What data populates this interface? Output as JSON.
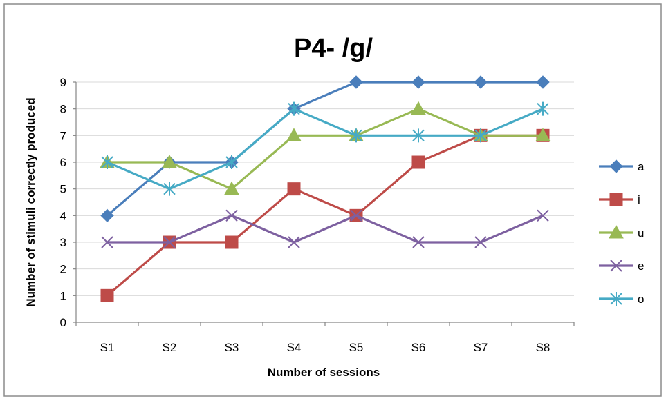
{
  "chart_data": {
    "type": "line",
    "title": "P4- /g/",
    "xlabel": "Number of sessions",
    "ylabel": "Number of stimuli correctly produced",
    "categories": [
      "S1",
      "S2",
      "S3",
      "S4",
      "S5",
      "S6",
      "S7",
      "S8"
    ],
    "yticks": [
      "0",
      "1",
      "2",
      "3",
      "4",
      "5",
      "6",
      "7",
      "8",
      "9"
    ],
    "ylim": [
      0,
      9
    ],
    "grid": true,
    "legend_position": "right",
    "series": [
      {
        "name": "a",
        "values": [
          4,
          6,
          6,
          8,
          9,
          9,
          9,
          9
        ],
        "color": "#4A7EBB",
        "marker": "diamond"
      },
      {
        "name": "i",
        "values": [
          1,
          3,
          3,
          5,
          4,
          6,
          7,
          7
        ],
        "color": "#BE4B48",
        "marker": "square"
      },
      {
        "name": "u",
        "values": [
          6,
          6,
          5,
          7,
          7,
          8,
          7,
          7
        ],
        "color": "#98B954",
        "marker": "triangle"
      },
      {
        "name": "e",
        "values": [
          3,
          3,
          4,
          3,
          4,
          3,
          3,
          4
        ],
        "color": "#7D60A0",
        "marker": "x"
      },
      {
        "name": "o",
        "values": [
          6,
          5,
          6,
          8,
          7,
          7,
          7,
          8
        ],
        "color": "#46AAC5",
        "marker": "star"
      }
    ]
  }
}
